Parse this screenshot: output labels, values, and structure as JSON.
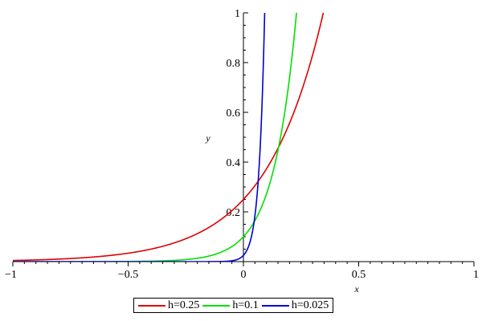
{
  "chart_data": {
    "type": "line",
    "title": "",
    "xlabel": "x",
    "ylabel": "y",
    "xlim": [
      -1,
      1
    ],
    "ylim": [
      0,
      1
    ],
    "x_ticks": [
      -1,
      -0.5,
      0,
      0.5,
      1
    ],
    "x_tick_labels": [
      "−1",
      "−0.5",
      "0",
      "0.5",
      "1"
    ],
    "y_ticks": [
      0.2,
      0.4,
      0.6,
      0.8,
      1
    ],
    "y_tick_labels": [
      "0.2",
      "0.4",
      "0.6",
      "0.8",
      "1"
    ],
    "grid": false,
    "legend_position": "bottom-center",
    "series": [
      {
        "name": "h=0.25",
        "color": "#e00000",
        "h": 0.25,
        "x": [
          -1,
          -0.8,
          -0.6,
          -0.5,
          -0.4,
          -0.3,
          -0.2,
          -0.1,
          0,
          0.05,
          0.1,
          0.15,
          0.2,
          0.25
        ],
        "y": [
          0.0049,
          0.011,
          0.024,
          0.037,
          0.055,
          0.082,
          0.122,
          0.183,
          0.27,
          0.33,
          0.41,
          0.5,
          0.61,
          0.72
        ]
      },
      {
        "name": "h=0.1",
        "color": "#00e000",
        "h": 0.1,
        "x": [
          -1,
          -0.3,
          -0.2,
          -0.1,
          -0.05,
          0,
          0.02,
          0.04,
          0.06,
          0.08,
          0.1
        ],
        "y": [
          0,
          0.0016,
          0.0045,
          0.0122,
          0.02,
          0.1,
          0.15,
          0.22,
          0.33,
          0.5,
          0.74
        ]
      },
      {
        "name": "h=0.025",
        "color": "#0000d0",
        "h": 0.025,
        "x": [
          -1,
          -0.05,
          -0.025,
          -0.01,
          0,
          0.005,
          0.01,
          0.015,
          0.02,
          0.025
        ],
        "y": [
          0,
          0.0003,
          0.0027,
          0.0122,
          0.025,
          0.06,
          0.15,
          0.35,
          0.7,
          1.0
        ]
      }
    ]
  }
}
